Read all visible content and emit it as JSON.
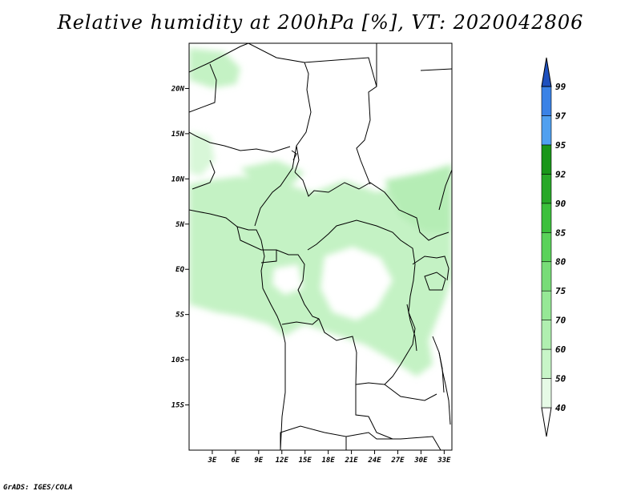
{
  "title": "Relative humidity at 200hPa [%], VT: 2020042806",
  "credit": "GrADS: IGES/COLA",
  "map": {
    "lat_ticks": [
      {
        "label": "20N",
        "lat": 20
      },
      {
        "label": "15N",
        "lat": 15
      },
      {
        "label": "10N",
        "lat": 10
      },
      {
        "label": "5N",
        "lat": 5
      },
      {
        "label": "EQ",
        "lat": 0
      },
      {
        "label": "5S",
        "lat": -5
      },
      {
        "label": "10S",
        "lat": -10
      },
      {
        "label": "15S",
        "lat": -15
      }
    ],
    "lon_ticks": [
      {
        "label": "3E",
        "lon": 3
      },
      {
        "label": "6E",
        "lon": 6
      },
      {
        "label": "9E",
        "lon": 9
      },
      {
        "label": "12E",
        "lon": 12
      },
      {
        "label": "15E",
        "lon": 15
      },
      {
        "label": "18E",
        "lon": 18
      },
      {
        "label": "21E",
        "lon": 21
      },
      {
        "label": "24E",
        "lon": 24
      },
      {
        "label": "27E",
        "lon": 27
      },
      {
        "label": "30E",
        "lon": 30
      },
      {
        "label": "33E",
        "lon": 33
      }
    ],
    "lon_range": [
      0,
      34
    ],
    "lat_range": [
      -20,
      25
    ]
  },
  "colorbar": {
    "levels": [
      "40",
      "50",
      "60",
      "70",
      "75",
      "80",
      "85",
      "90",
      "92",
      "95",
      "97",
      "99"
    ],
    "colors": [
      "#e6fae6",
      "#c8f5c8",
      "#b0efb0",
      "#96e896",
      "#78dc78",
      "#5ad25a",
      "#3cc03c",
      "#28a828",
      "#1a961a",
      "#50a0f0",
      "#3a82e6",
      "#2864d2",
      "#1e50be"
    ]
  }
}
